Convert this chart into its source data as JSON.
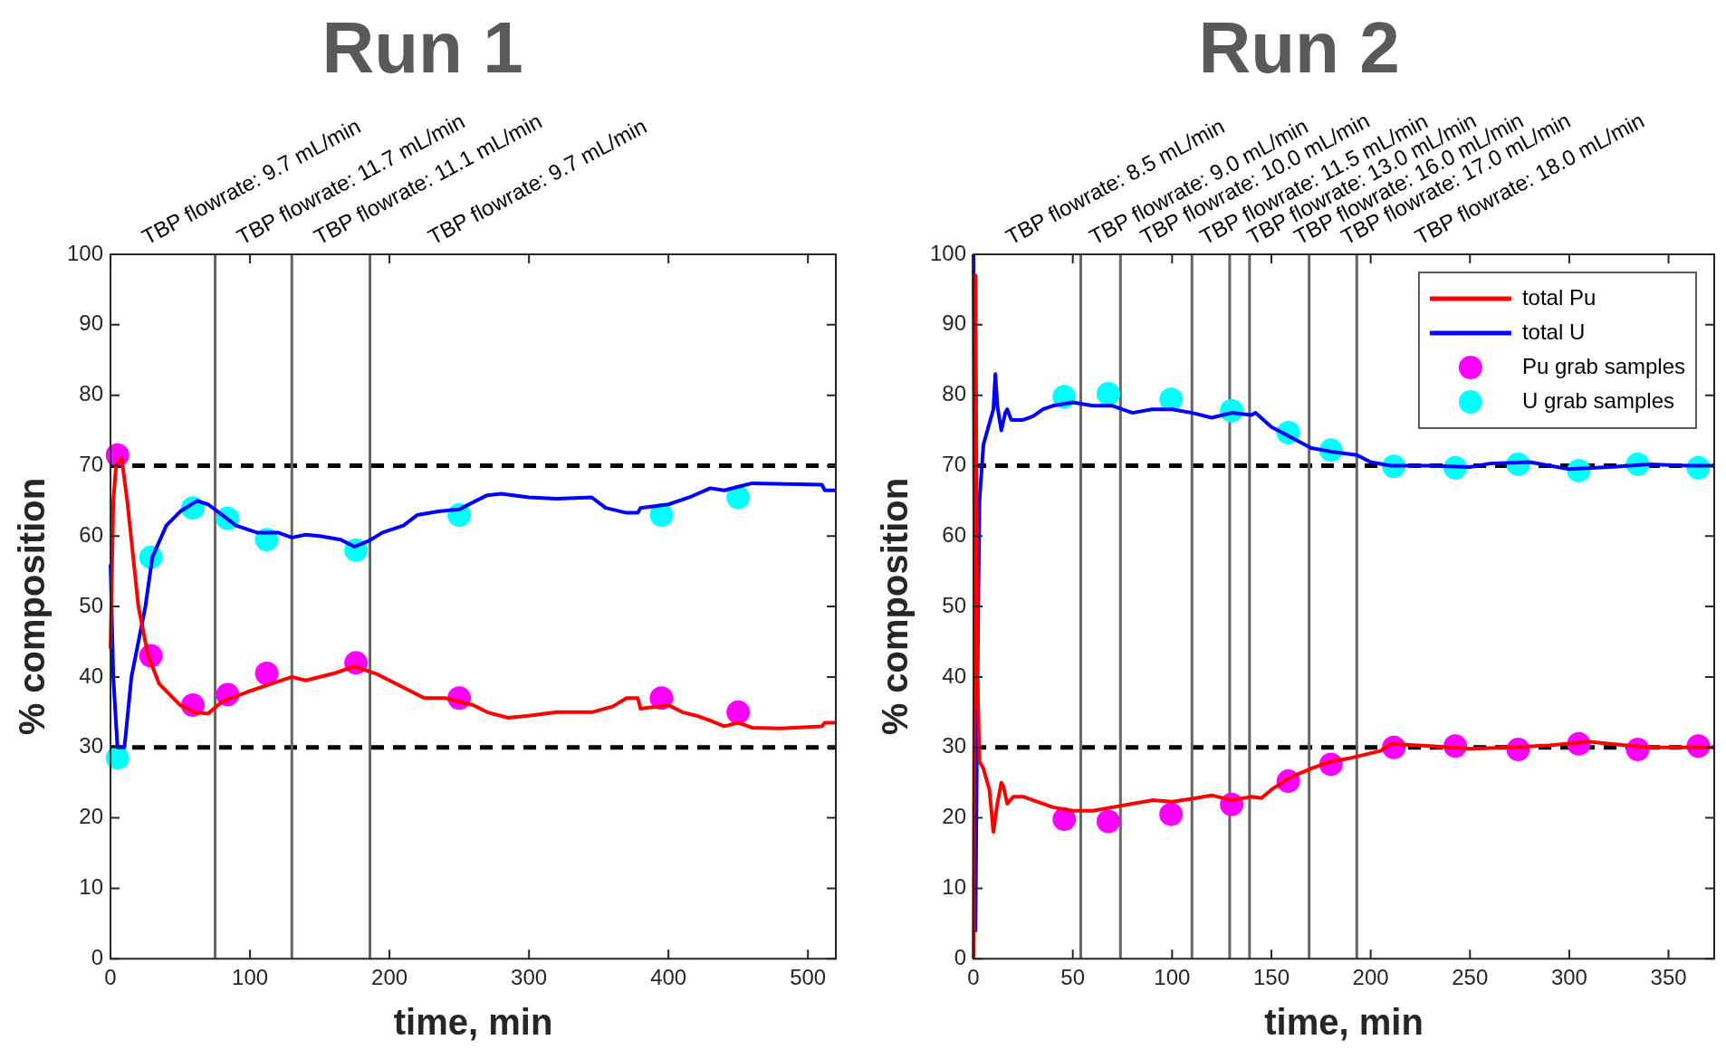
{
  "chart_data": [
    {
      "type": "line",
      "title": "Run 1",
      "xlabel": "time, min",
      "ylabel": "% composition",
      "xlim": [
        0,
        520
      ],
      "xticks": [
        0,
        100,
        200,
        300,
        400,
        500
      ],
      "ylim": [
        0,
        100
      ],
      "yticks": [
        0,
        10,
        20,
        30,
        40,
        50,
        60,
        70,
        80,
        90,
        100
      ],
      "legend": false,
      "series": [
        {
          "color": "#ff0000",
          "marker": "none",
          "x": [
            0,
            2,
            4,
            8,
            12,
            20,
            27,
            35,
            50,
            60,
            70,
            80,
            100,
            115,
            130,
            140,
            160,
            175,
            190,
            200,
            215,
            225,
            240,
            260,
            270,
            285,
            300,
            320,
            345,
            360,
            370,
            378,
            380,
            400,
            410,
            420,
            430,
            440,
            450,
            460,
            480,
            510,
            512,
            520
          ],
          "values": [
            44,
            65,
            70,
            71,
            65,
            50,
            43,
            39,
            36,
            35,
            34.8,
            36.5,
            38,
            39,
            40,
            39.5,
            40.5,
            41.5,
            40.5,
            39.5,
            38,
            37,
            37,
            36,
            35,
            34.2,
            34.5,
            35,
            35,
            35.8,
            37,
            37,
            35.5,
            36,
            35,
            34.5,
            33.8,
            33,
            33.5,
            32.8,
            32.7,
            33,
            33.5,
            33.5
          ]
        },
        {
          "color": "#0000ff",
          "marker": "none",
          "x": [
            0,
            2,
            5,
            10,
            15,
            25,
            30,
            40,
            50,
            62,
            70,
            80,
            90,
            105,
            120,
            130,
            140,
            150,
            165,
            175,
            185,
            195,
            210,
            220,
            235,
            250,
            270,
            280,
            300,
            320,
            345,
            355,
            370,
            378,
            380,
            400,
            415,
            430,
            440,
            450,
            460,
            510,
            512,
            520
          ],
          "values": [
            56,
            40,
            30,
            30,
            40,
            50,
            57,
            61.5,
            63.5,
            65,
            64.5,
            63,
            61.5,
            60.5,
            60.5,
            59.8,
            60.2,
            60,
            59.5,
            58.5,
            59.3,
            60.5,
            61.5,
            63,
            63.5,
            63.8,
            65.8,
            66,
            65.5,
            65.3,
            65.5,
            64,
            63.3,
            63.3,
            64,
            64.5,
            65.5,
            66.8,
            66.5,
            67,
            67.5,
            67.3,
            66.5,
            66.5
          ]
        },
        {
          "type": "scatter",
          "color": "#ff00ff",
          "marker": "circle",
          "x": [
            5,
            29,
            59,
            84,
            112,
            176,
            250,
            395,
            450
          ],
          "values": [
            71.5,
            43,
            36,
            37.5,
            40.5,
            42,
            37,
            37,
            35
          ]
        },
        {
          "type": "scatter",
          "color": "#00ffff",
          "marker": "circle",
          "x": [
            5,
            29,
            59,
            84,
            112,
            176,
            250,
            395,
            450
          ],
          "values": [
            28.5,
            57,
            64,
            62.5,
            59.5,
            58,
            63,
            63,
            65.5
          ]
        }
      ],
      "ref_lines": [
        {
          "axis": "y",
          "value": 70,
          "color": "#000000",
          "line_style": "dashed"
        },
        {
          "axis": "y",
          "value": 30,
          "color": "#000000",
          "line_style": "dashed"
        },
        {
          "axis": "x",
          "value": 75,
          "color": "#666666",
          "line_style": "solid"
        },
        {
          "axis": "x",
          "value": 130,
          "color": "#666666",
          "line_style": "solid"
        },
        {
          "axis": "x",
          "value": 186,
          "color": "#666666",
          "line_style": "solid"
        }
      ],
      "annotations": [
        "TBP flowrate: 9.7 mL/min",
        "TBP flowrate: 11.7 mL/min",
        "TBP flowrate: 11.1 mL/min",
        "TBP flowrate: 9.7 mL/min"
      ]
    },
    {
      "type": "line",
      "title": "Run 2",
      "xlabel": "time, min",
      "ylabel": "% composition",
      "xlim": [
        0,
        373
      ],
      "xticks": [
        0,
        50,
        100,
        150,
        200,
        250,
        300,
        350
      ],
      "ylim": [
        0,
        100
      ],
      "yticks": [
        0,
        10,
        20,
        30,
        40,
        50,
        60,
        70,
        80,
        90,
        100
      ],
      "legend": "top right",
      "series": [
        {
          "name": "total Pu",
          "color": "#ff0000",
          "marker": "none",
          "x": [
            0,
            1,
            2,
            3,
            5,
            8,
            10,
            12,
            14,
            15,
            17,
            20,
            25,
            30,
            40,
            50,
            60,
            70,
            80,
            90,
            100,
            110,
            120,
            130,
            140,
            145,
            150,
            160,
            170,
            180,
            190,
            205,
            210,
            230,
            250,
            270,
            290,
            310,
            340,
            373
          ],
          "values": [
            0,
            97,
            40,
            28,
            27,
            24,
            18,
            22,
            25,
            24.5,
            22,
            23,
            23,
            22.5,
            21.5,
            21,
            21,
            21.5,
            22,
            22.5,
            22.3,
            22.7,
            23.2,
            22.5,
            23,
            22.8,
            24,
            25.8,
            27,
            28,
            28.5,
            29.5,
            30.5,
            30.2,
            29.8,
            30,
            30.3,
            30.8,
            30,
            30
          ]
        },
        {
          "name": "total U",
          "color": "#0000ff",
          "marker": "none",
          "x": [
            0,
            1,
            2,
            3,
            5,
            8,
            10,
            11,
            12,
            14,
            16,
            17,
            19,
            25,
            30,
            35,
            40,
            50,
            60,
            70,
            80,
            90,
            100,
            110,
            120,
            130,
            140,
            142,
            150,
            160,
            170,
            180,
            193,
            200,
            210,
            230,
            250,
            260,
            280,
            300,
            320,
            340,
            360,
            373
          ],
          "values": [
            100,
            4,
            40,
            65,
            73,
            76,
            78,
            83,
            78.5,
            75,
            77.5,
            78,
            76.5,
            76.5,
            77,
            78,
            78.5,
            79,
            78.5,
            78.5,
            77.5,
            78,
            78,
            77.5,
            76.8,
            77.5,
            77.2,
            77.5,
            75.5,
            74,
            72.5,
            72,
            71.5,
            70.5,
            70,
            70,
            69.8,
            70.3,
            70.5,
            69.5,
            69.8,
            70.2,
            70,
            70
          ]
        },
        {
          "type": "scatter",
          "name": "Pu grab samples",
          "color": "#ff00ff",
          "marker": "circle",
          "x": [
            45.7,
            67.9,
            99.5,
            130,
            158.5,
            180,
            211.7,
            242.6,
            274.3,
            304.8,
            334.5,
            365
          ],
          "values": [
            19.8,
            19.5,
            20.5,
            21.9,
            25.2,
            27.6,
            30,
            30.2,
            29.7,
            30.5,
            29.7,
            30.2
          ]
        },
        {
          "type": "scatter",
          "name": "U grab samples",
          "color": "#00ffff",
          "marker": "circle",
          "x": [
            45.7,
            67.9,
            99.5,
            130,
            158.5,
            180,
            211.7,
            242.6,
            274.3,
            304.8,
            334.5,
            365
          ],
          "values": [
            79.8,
            80.2,
            79.4,
            77.8,
            74.7,
            72.2,
            69.9,
            69.7,
            70.2,
            69.3,
            70.2,
            69.7
          ]
        }
      ],
      "ref_lines": [
        {
          "axis": "y",
          "value": 70,
          "color": "#000000",
          "line_style": "dashed"
        },
        {
          "axis": "y",
          "value": 30,
          "color": "#000000",
          "line_style": "dashed"
        },
        {
          "axis": "x",
          "value": 54,
          "color": "#666666",
          "line_style": "solid"
        },
        {
          "axis": "x",
          "value": 74,
          "color": "#666666",
          "line_style": "solid"
        },
        {
          "axis": "x",
          "value": 110,
          "color": "#666666",
          "line_style": "solid"
        },
        {
          "axis": "x",
          "value": 129,
          "color": "#666666",
          "line_style": "solid"
        },
        {
          "axis": "x",
          "value": 139,
          "color": "#666666",
          "line_style": "solid"
        },
        {
          "axis": "x",
          "value": 169,
          "color": "#666666",
          "line_style": "solid"
        },
        {
          "axis": "x",
          "value": 193,
          "color": "#666666",
          "line_style": "solid"
        }
      ],
      "annotations": [
        "TBP flowrate: 8.5 mL/min",
        "TBP flowrate: 9.0 mL/min",
        "TBP flowrate: 10.0 mL/min",
        "TBP flowrate: 11.5 mL/min",
        "TBP flowrate: 13.0 mL/min",
        "TBP flowrate: 16.0 mL/min",
        "TBP flowrate: 17.0 mL/min",
        "TBP flowrate: 18.0 mL/min"
      ]
    }
  ]
}
